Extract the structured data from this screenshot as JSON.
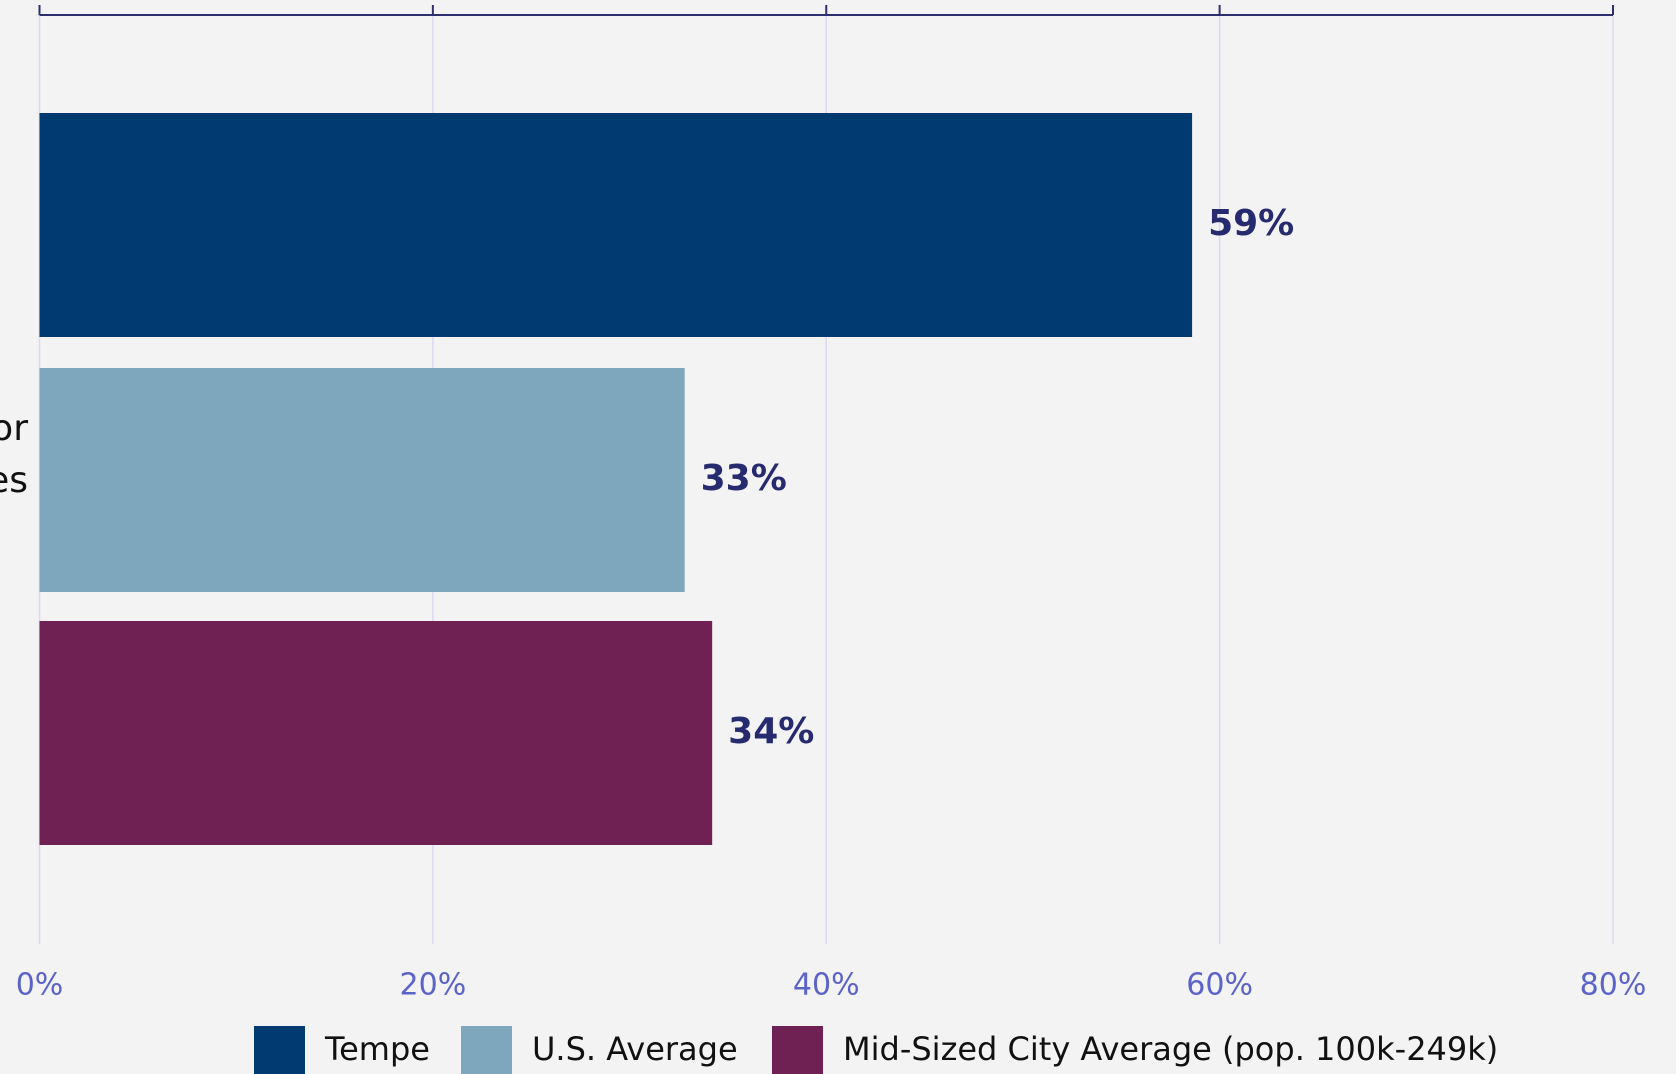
{
  "chart_data": {
    "type": "bar",
    "orientation": "horizontal",
    "categories": [
      [
        "or",
        "es"
      ]
    ],
    "series": [
      {
        "name": "Tempe",
        "color": "#003a70",
        "values": [
          58.6
        ],
        "value_labels": [
          "59%"
        ]
      },
      {
        "name": "U.S. Average",
        "color": "#7ea7bd",
        "values": [
          32.8
        ],
        "value_labels": [
          "33%"
        ]
      },
      {
        "name": "Mid-Sized City Average (pop. 100k-249k)",
        "color": "#6f2154",
        "values": [
          34.2
        ],
        "value_labels": [
          "34%"
        ]
      }
    ],
    "xlim": [
      0,
      80
    ],
    "xticks": [
      {
        "value": 0,
        "label": "0%"
      },
      {
        "value": 20,
        "label": "20%"
      },
      {
        "value": 40,
        "label": "40%"
      },
      {
        "value": 60,
        "label": "60%"
      },
      {
        "value": 80,
        "label": "80%"
      }
    ],
    "grid": true,
    "legend": "bottom"
  }
}
